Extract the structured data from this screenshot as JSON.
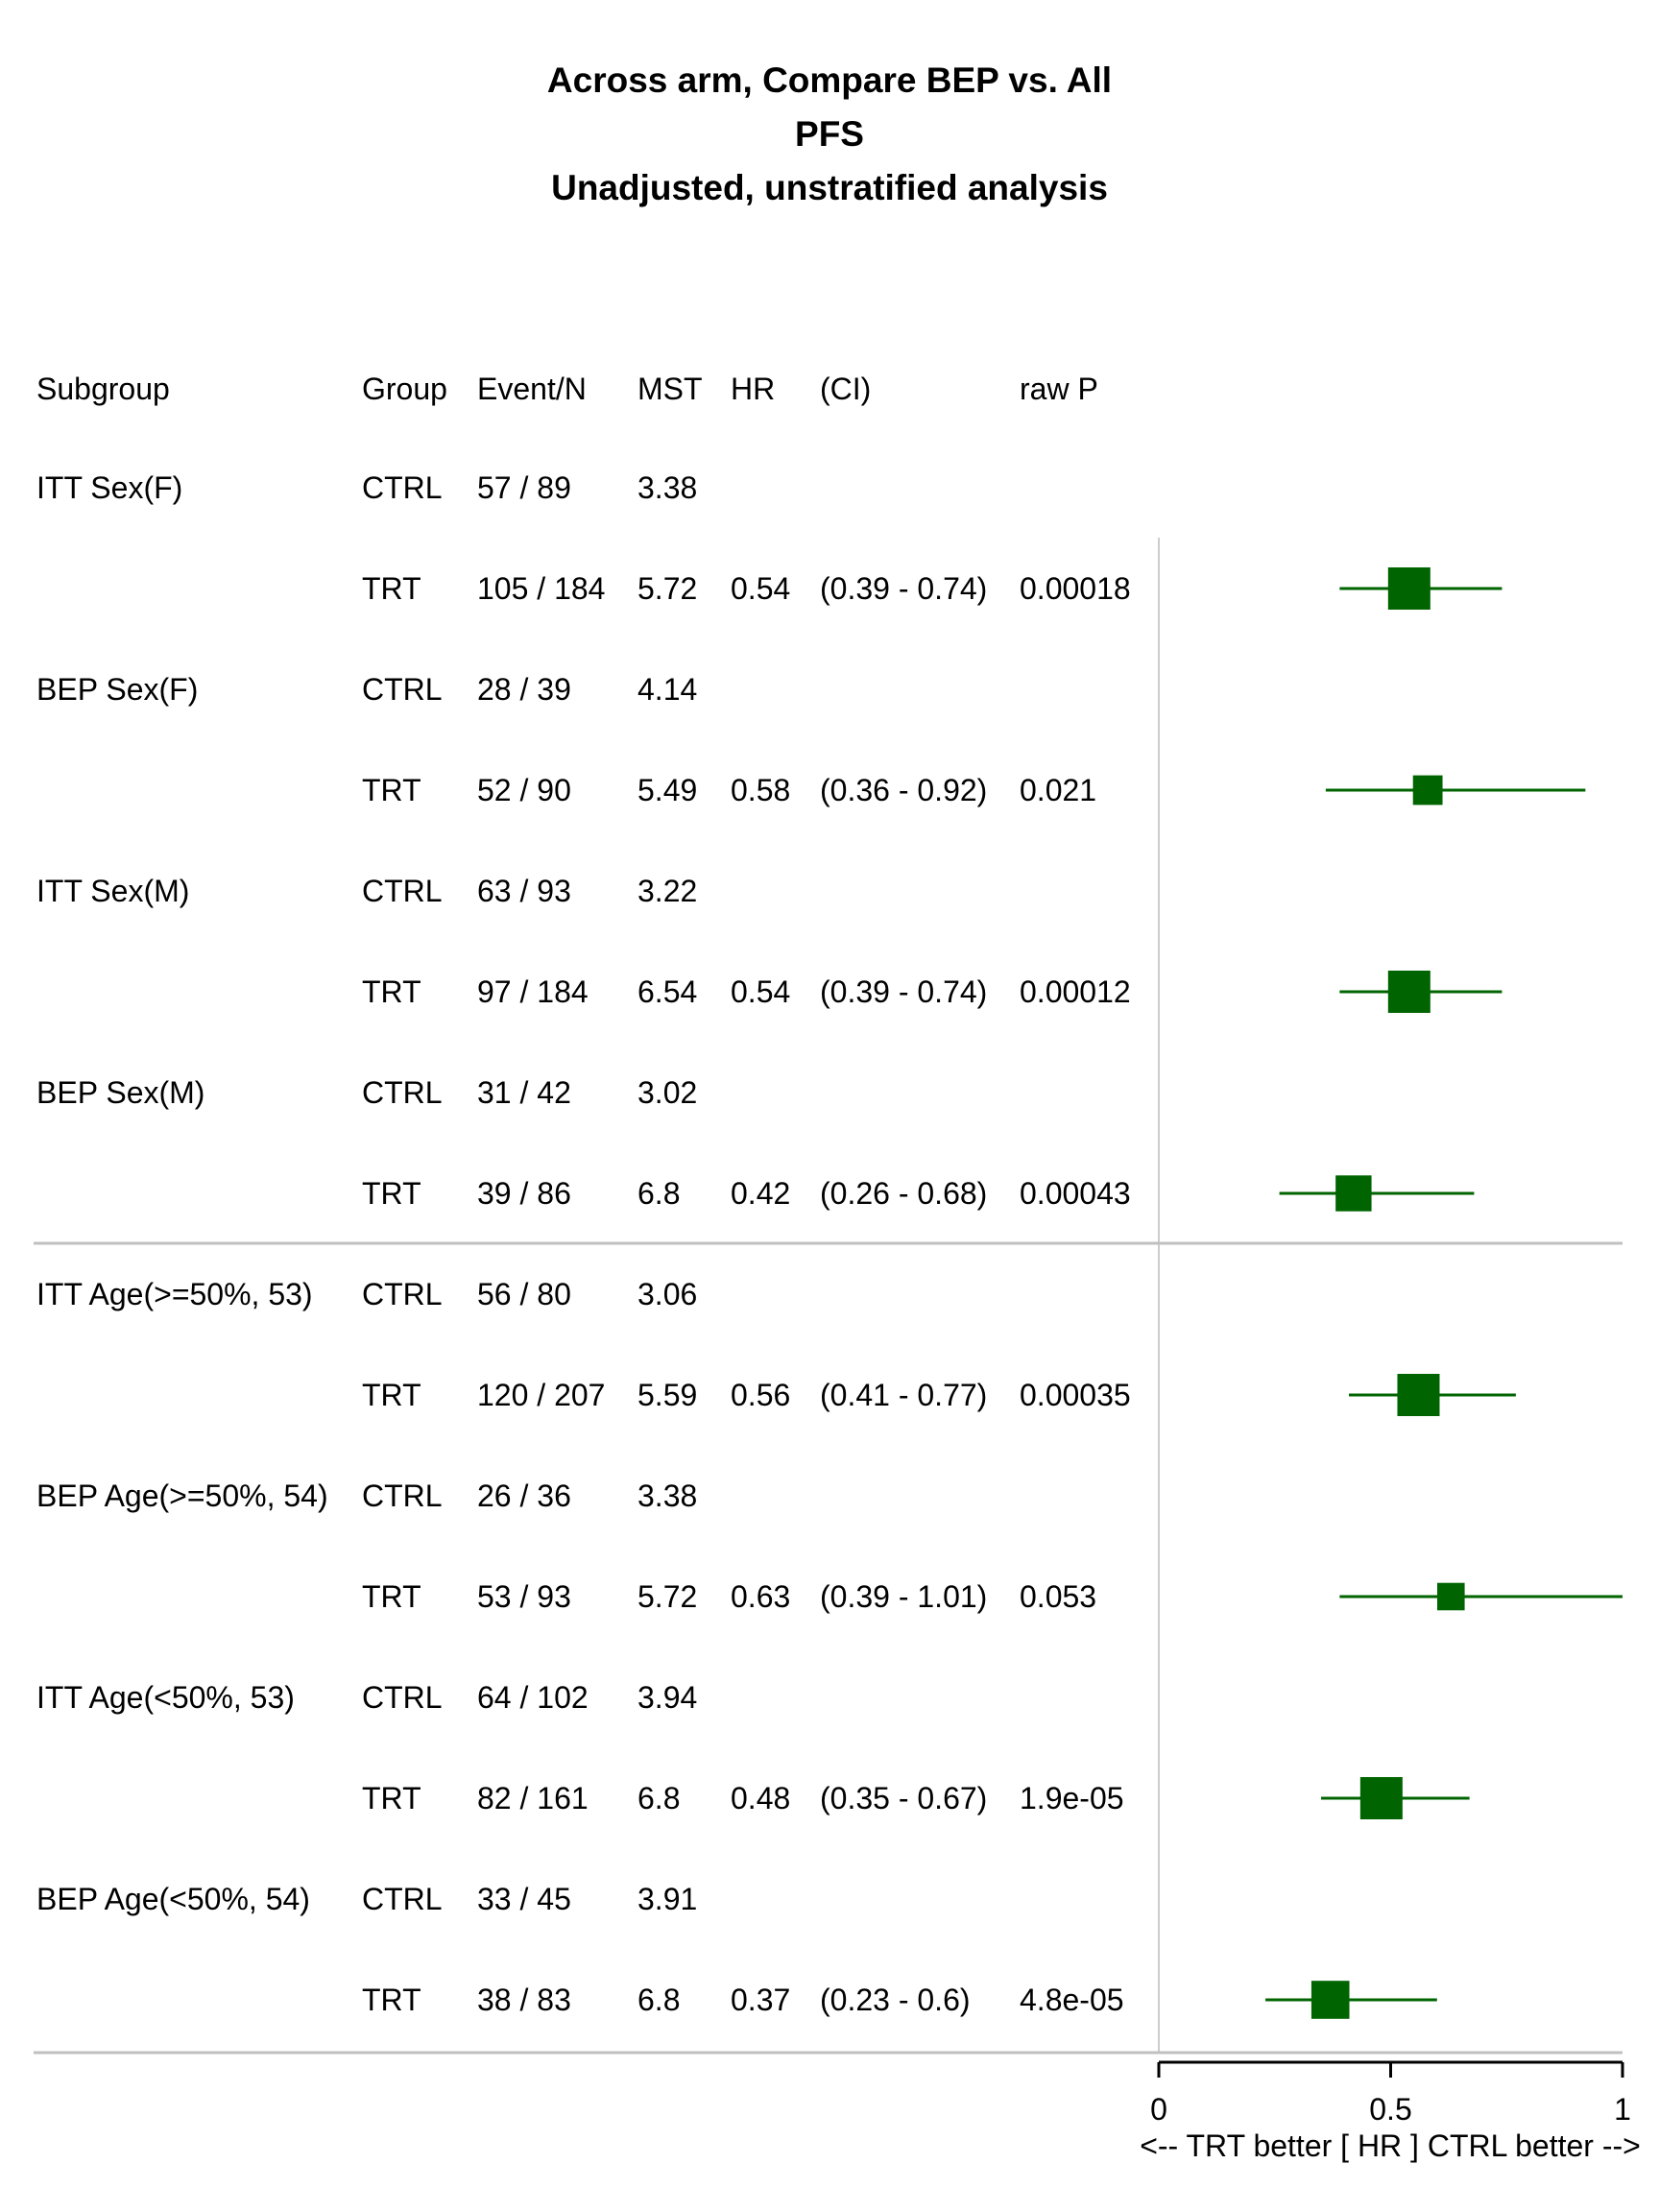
{
  "title": {
    "line1": "Across arm, Compare BEP vs. All",
    "line2": "PFS",
    "line3": "Unadjusted, unstratified analysis"
  },
  "colors": {
    "marker": "#006400",
    "ref_line": "#cccccc",
    "separator": "#c0c0c0",
    "axis": "#000000"
  },
  "headers": {
    "subgroup": "Subgroup",
    "group": "Group",
    "event_n": "Event/N",
    "mst": "MST",
    "hr": "HR",
    "ci": "(CI)",
    "raw_p": "raw P"
  },
  "chart_data": {
    "type": "forest",
    "xlabel": "<--  TRT better [ HR ]  CTRL better -->",
    "xlim": [
      0,
      1
    ],
    "xticks": [
      "0",
      "0.5",
      "1"
    ],
    "reference_line": 1,
    "rows": [
      {
        "subgroup": "ITT Sex(F)",
        "group": "CTRL",
        "event_n": "57 / 89",
        "mst": "3.38",
        "hr": "",
        "ci": "",
        "p": ""
      },
      {
        "subgroup": "",
        "group": "TRT",
        "event_n": "105 / 184",
        "mst": "5.72",
        "hr": "0.54",
        "ci": "(0.39 - 0.74)",
        "p": "0.00018",
        "hr_value": 0.54,
        "ci_low": 0.39,
        "ci_high": 0.74,
        "weight": 1.0
      },
      {
        "subgroup": "BEP Sex(F)",
        "group": "CTRL",
        "event_n": "28 / 39",
        "mst": "4.14",
        "hr": "",
        "ci": "",
        "p": ""
      },
      {
        "subgroup": "",
        "group": "TRT",
        "event_n": "52 / 90",
        "mst": "5.49",
        "hr": "0.58",
        "ci": "(0.36 - 0.92)",
        "p": "0.021",
        "hr_value": 0.58,
        "ci_low": 0.36,
        "ci_high": 0.92,
        "weight": 0.7
      },
      {
        "subgroup": "ITT Sex(M)",
        "group": "CTRL",
        "event_n": "63 / 93",
        "mst": "3.22",
        "hr": "",
        "ci": "",
        "p": ""
      },
      {
        "subgroup": "",
        "group": "TRT",
        "event_n": "97 / 184",
        "mst": "6.54",
        "hr": "0.54",
        "ci": "(0.39 - 0.74)",
        "p": "0.00012",
        "hr_value": 0.54,
        "ci_low": 0.39,
        "ci_high": 0.74,
        "weight": 1.0
      },
      {
        "subgroup": "BEP Sex(M)",
        "group": "CTRL",
        "event_n": "31 / 42",
        "mst": "3.02",
        "hr": "",
        "ci": "",
        "p": ""
      },
      {
        "subgroup": "",
        "group": "TRT",
        "event_n": "39 / 86",
        "mst": "6.8",
        "hr": "0.42",
        "ci": "(0.26 - 0.68)",
        "p": "0.00043",
        "hr_value": 0.42,
        "ci_low": 0.26,
        "ci_high": 0.68,
        "weight": 0.85,
        "separator_after": true
      },
      {
        "subgroup": "ITT Age(>=50%, 53)",
        "group": "CTRL",
        "event_n": "56 / 80",
        "mst": "3.06",
        "hr": "",
        "ci": "",
        "p": ""
      },
      {
        "subgroup": "",
        "group": "TRT",
        "event_n": "120 / 207",
        "mst": "5.59",
        "hr": "0.56",
        "ci": "(0.41 - 0.77)",
        "p": "0.00035",
        "hr_value": 0.56,
        "ci_low": 0.41,
        "ci_high": 0.77,
        "weight": 1.0
      },
      {
        "subgroup": "BEP Age(>=50%, 54)",
        "group": "CTRL",
        "event_n": "26 / 36",
        "mst": "3.38",
        "hr": "",
        "ci": "",
        "p": ""
      },
      {
        "subgroup": "",
        "group": "TRT",
        "event_n": "53 / 93",
        "mst": "5.72",
        "hr": "0.63",
        "ci": "(0.39 - 1.01)",
        "p": "0.053",
        "hr_value": 0.63,
        "ci_low": 0.39,
        "ci_high": 1.01,
        "weight": 0.65
      },
      {
        "subgroup": "ITT Age(<50%, 53)",
        "group": "CTRL",
        "event_n": "64 / 102",
        "mst": "3.94",
        "hr": "",
        "ci": "",
        "p": ""
      },
      {
        "subgroup": "",
        "group": "TRT",
        "event_n": "82 / 161",
        "mst": "6.8",
        "hr": "0.48",
        "ci": "(0.35 - 0.67)",
        "p": "1.9e-05",
        "hr_value": 0.48,
        "ci_low": 0.35,
        "ci_high": 0.67,
        "weight": 1.0
      },
      {
        "subgroup": "BEP Age(<50%, 54)",
        "group": "CTRL",
        "event_n": "33 / 45",
        "mst": "3.91",
        "hr": "",
        "ci": "",
        "p": ""
      },
      {
        "subgroup": "",
        "group": "TRT",
        "event_n": "38 / 83",
        "mst": "6.8",
        "hr": "0.37",
        "ci": "(0.23 - 0.6)",
        "p": "4.8e-05",
        "hr_value": 0.37,
        "ci_low": 0.23,
        "ci_high": 0.6,
        "weight": 0.9
      }
    ]
  }
}
